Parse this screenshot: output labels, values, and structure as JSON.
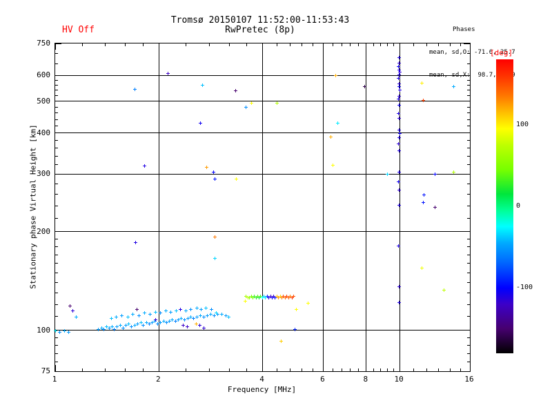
{
  "header": {
    "hv_status": "HV Off",
    "title": "Tromsø 20150107 11:52:00-11:53:43",
    "subtitle": "RwPretec (8p)",
    "phases_label": "Phases",
    "phases_mean_o": "mean, sd,O: -71.6, 25.7",
    "phases_mean_x": "mean, sd,X:  98.7, 25.9"
  },
  "colors": {
    "background": "#ffffff",
    "axis": "#000000",
    "annotation_red": "#ff0000"
  },
  "chart_data": {
    "type": "scatter",
    "title": "Tromsø 20150107 11:52:00-11:53:43",
    "subtitle": "RwPretec (8p)",
    "xlabel": "Frequency [MHz]",
    "ylabel": "Stationary phase Virtual Height [km]",
    "x_scale": "log",
    "y_scale": "log",
    "xlim": [
      1,
      16
    ],
    "ylim": [
      75,
      750
    ],
    "grid": true,
    "x_major_ticks": [
      1,
      2,
      4,
      6,
      8,
      10,
      16
    ],
    "x_minor_ticks": [
      1.2,
      1.4,
      1.6,
      1.8,
      2.4,
      2.8,
      3.2,
      3.6,
      4.4,
      4.8,
      5.2,
      5.6,
      6.4,
      6.8,
      7.2,
      7.6,
      8.4,
      8.8,
      9.2,
      9.6,
      11,
      12,
      13,
      14,
      15
    ],
    "y_major_ticks": [
      75,
      100,
      200,
      300,
      400,
      500,
      600,
      750
    ],
    "y_minor_ticks": [
      80,
      85,
      90,
      95,
      110,
      120,
      130,
      140,
      150,
      160,
      170,
      180,
      190,
      220,
      240,
      260,
      280,
      320,
      340,
      360,
      380,
      420,
      440,
      460,
      480,
      520,
      540,
      560,
      580,
      650,
      700
    ],
    "grid_x": [
      2,
      4,
      6,
      8,
      10
    ],
    "grid_y": [
      100,
      200,
      300,
      400,
      500,
      600
    ],
    "colorbar": {
      "label": "[deg]",
      "label_color": "#ff0000",
      "min": -180,
      "max": 180,
      "ticks": [
        100,
        0,
        -100
      ],
      "stops": [
        {
          "v": -180,
          "c": "#000000"
        },
        {
          "v": -150,
          "c": "#46006e"
        },
        {
          "v": -120,
          "c": "#3c00c8"
        },
        {
          "v": -100,
          "c": "#0000ff"
        },
        {
          "v": -70,
          "c": "#0064ff"
        },
        {
          "v": -45,
          "c": "#00aaff"
        },
        {
          "v": -25,
          "c": "#00ffff"
        },
        {
          "v": -5,
          "c": "#00ff96"
        },
        {
          "v": 15,
          "c": "#00e63c"
        },
        {
          "v": 45,
          "c": "#78ff00"
        },
        {
          "v": 75,
          "c": "#beff00"
        },
        {
          "v": 95,
          "c": "#ffff00"
        },
        {
          "v": 115,
          "c": "#ffbe00"
        },
        {
          "v": 135,
          "c": "#ff7800"
        },
        {
          "v": 160,
          "c": "#ff3200"
        },
        {
          "v": 180,
          "c": "#ff0000"
        }
      ]
    },
    "point_format": [
      "frequency_MHz",
      "virtual_height_km",
      "phase_deg"
    ],
    "points": [
      [
        2.12,
        610,
        -120
      ],
      [
        2.67,
        560,
        -40
      ],
      [
        1.7,
        545,
        -60
      ],
      [
        3.33,
        540,
        -150
      ],
      [
        3.7,
        495,
        95
      ],
      [
        3.57,
        480,
        -55
      ],
      [
        2.64,
        430,
        -105
      ],
      [
        1.81,
        318,
        -110
      ],
      [
        2.75,
        315,
        125
      ],
      [
        2.87,
        305,
        -100
      ],
      [
        2.9,
        290,
        -95
      ],
      [
        3.35,
        290,
        95
      ],
      [
        1.71,
        186,
        -110
      ],
      [
        2.9,
        193,
        135
      ],
      [
        2.9,
        166,
        -35
      ],
      [
        6.5,
        600,
        120
      ],
      [
        7.9,
        555,
        -160
      ],
      [
        11.6,
        570,
        100
      ],
      [
        14.3,
        555,
        -45
      ],
      [
        11.7,
        505,
        155
      ],
      [
        4.4,
        495,
        70
      ],
      [
        6.6,
        430,
        -30
      ],
      [
        6.3,
        390,
        120
      ],
      [
        6.4,
        320,
        95
      ],
      [
        14.3,
        305,
        70
      ],
      [
        9.2,
        300,
        -35
      ],
      [
        12.65,
        300,
        -100
      ],
      [
        11.75,
        259,
        -95
      ],
      [
        11.7,
        246,
        -95
      ],
      [
        12.65,
        238,
        -150
      ],
      [
        11.6,
        155,
        90
      ],
      [
        13.4,
        133,
        75
      ],
      [
        4.52,
        93,
        110
      ],
      [
        4.96,
        101,
        -90
      ],
      [
        5.0,
        116,
        95
      ],
      [
        5.42,
        121,
        95
      ],
      [
        9.95,
        680,
        -110
      ],
      [
        9.95,
        655,
        -115
      ],
      [
        9.9,
        640,
        -105
      ],
      [
        9.95,
        625,
        -110
      ],
      [
        10.0,
        614,
        -115
      ],
      [
        9.95,
        603,
        -110
      ],
      [
        9.9,
        589,
        -110
      ],
      [
        9.95,
        566,
        -115
      ],
      [
        9.95,
        556,
        -105
      ],
      [
        10.0,
        541,
        -110
      ],
      [
        9.95,
        519,
        -115
      ],
      [
        9.9,
        510,
        -110
      ],
      [
        9.95,
        487,
        -105
      ],
      [
        9.9,
        460,
        -110
      ],
      [
        9.95,
        444,
        -115
      ],
      [
        9.95,
        409,
        -110
      ],
      [
        10.0,
        399,
        -105
      ],
      [
        9.95,
        388,
        -110
      ],
      [
        9.9,
        371,
        -115
      ],
      [
        9.95,
        354,
        -110
      ],
      [
        9.95,
        304,
        -110
      ],
      [
        9.9,
        285,
        -105
      ],
      [
        9.95,
        268,
        -115
      ],
      [
        9.95,
        241,
        -110
      ],
      [
        9.9,
        181,
        -110
      ],
      [
        9.95,
        136,
        -115
      ],
      [
        9.95,
        122,
        -110
      ],
      [
        1.0,
        100,
        -30
      ],
      [
        1.03,
        99,
        -55
      ],
      [
        1.06,
        100,
        -45
      ],
      [
        1.09,
        99,
        -50
      ],
      [
        1.15,
        110,
        -45
      ],
      [
        1.1,
        119,
        -150
      ],
      [
        1.12,
        115,
        -115
      ],
      [
        1.33,
        101,
        -50
      ],
      [
        1.36,
        102,
        -45
      ],
      [
        1.38,
        101,
        -55
      ],
      [
        1.41,
        103,
        -40
      ],
      [
        1.43,
        102,
        -50
      ],
      [
        1.46,
        103,
        -45
      ],
      [
        1.48,
        101,
        -60
      ],
      [
        1.51,
        103,
        -50
      ],
      [
        1.54,
        104,
        -45
      ],
      [
        1.57,
        102,
        -55
      ],
      [
        1.6,
        104,
        -50
      ],
      [
        1.63,
        105,
        -40
      ],
      [
        1.66,
        103,
        -55
      ],
      [
        1.7,
        104,
        -45
      ],
      [
        1.73,
        105,
        -50
      ],
      [
        1.77,
        106,
        -40
      ],
      [
        1.8,
        104,
        -55
      ],
      [
        1.84,
        106,
        -45
      ],
      [
        1.87,
        105,
        -60
      ],
      [
        1.91,
        106,
        -50
      ],
      [
        1.94,
        107,
        -45
      ],
      [
        1.98,
        105,
        -55
      ],
      [
        2.02,
        106,
        -50
      ],
      [
        2.06,
        107,
        -45
      ],
      [
        2.1,
        106,
        -55
      ],
      [
        2.14,
        107,
        -50
      ],
      [
        2.18,
        108,
        -45
      ],
      [
        2.23,
        107,
        -60
      ],
      [
        2.27,
        108,
        -50
      ],
      [
        2.32,
        109,
        -45
      ],
      [
        2.37,
        108,
        -55
      ],
      [
        2.42,
        109,
        -50
      ],
      [
        2.47,
        110,
        -45
      ],
      [
        2.52,
        109,
        -60
      ],
      [
        2.58,
        110,
        -50
      ],
      [
        2.64,
        111,
        -45
      ],
      [
        2.7,
        110,
        -55
      ],
      [
        2.76,
        111,
        -50
      ],
      [
        2.83,
        112,
        -45
      ],
      [
        2.89,
        111,
        -55
      ],
      [
        2.96,
        112,
        -50
      ],
      [
        1.95,
        108,
        -115
      ],
      [
        2.35,
        104,
        -120
      ],
      [
        2.41,
        103,
        -120
      ],
      [
        2.62,
        104,
        -115
      ],
      [
        2.7,
        102,
        -115
      ],
      [
        1.45,
        109,
        -40
      ],
      [
        1.5,
        110,
        -45
      ],
      [
        1.56,
        111,
        -50
      ],
      [
        1.62,
        110,
        -40
      ],
      [
        1.68,
        112,
        -45
      ],
      [
        1.72,
        116,
        -150
      ],
      [
        1.75,
        111,
        -55
      ],
      [
        1.81,
        113,
        -45
      ],
      [
        1.88,
        112,
        -50
      ],
      [
        1.95,
        114,
        -40
      ],
      [
        2.02,
        113,
        -55
      ],
      [
        2.09,
        115,
        -45
      ],
      [
        2.16,
        114,
        -50
      ],
      [
        2.24,
        115,
        -40
      ],
      [
        2.31,
        116,
        -110
      ],
      [
        2.39,
        115,
        -45
      ],
      [
        2.47,
        116,
        -55
      ],
      [
        2.56,
        105,
        120
      ],
      [
        2.57,
        117,
        -45
      ],
      [
        2.65,
        116,
        -50
      ],
      [
        2.74,
        117,
        -40
      ],
      [
        2.84,
        116,
        -55
      ],
      [
        2.93,
        113,
        -35
      ],
      [
        3.04,
        112,
        -45
      ],
      [
        3.13,
        111,
        -50
      ],
      [
        3.18,
        110,
        -40
      ],
      [
        3.55,
        123,
        95
      ],
      [
        3.58,
        127,
        65
      ],
      [
        3.62,
        126,
        80
      ],
      [
        3.66,
        126,
        55
      ],
      [
        3.7,
        127,
        45
      ],
      [
        3.74,
        126,
        45
      ],
      [
        3.78,
        127,
        30
      ],
      [
        3.82,
        126,
        25
      ],
      [
        3.86,
        127,
        35
      ],
      [
        3.9,
        126,
        20
      ],
      [
        3.94,
        127,
        30
      ],
      [
        3.99,
        126,
        -25
      ],
      [
        4.03,
        127,
        -35
      ],
      [
        4.07,
        126,
        -30
      ],
      [
        4.12,
        127,
        -90
      ],
      [
        4.16,
        126,
        -110
      ],
      [
        4.21,
        127,
        -120
      ],
      [
        4.25,
        126,
        -105
      ],
      [
        4.3,
        127,
        -115
      ],
      [
        4.34,
        126,
        -100
      ],
      [
        4.39,
        127,
        115
      ],
      [
        4.44,
        126,
        125
      ],
      [
        4.49,
        127,
        110
      ],
      [
        4.54,
        126,
        130
      ],
      [
        4.59,
        127,
        150
      ],
      [
        4.64,
        126,
        140
      ],
      [
        4.7,
        127,
        155
      ],
      [
        4.75,
        126,
        145
      ],
      [
        4.81,
        127,
        135
      ],
      [
        4.86,
        126,
        160
      ],
      [
        4.92,
        127,
        150
      ]
    ]
  }
}
